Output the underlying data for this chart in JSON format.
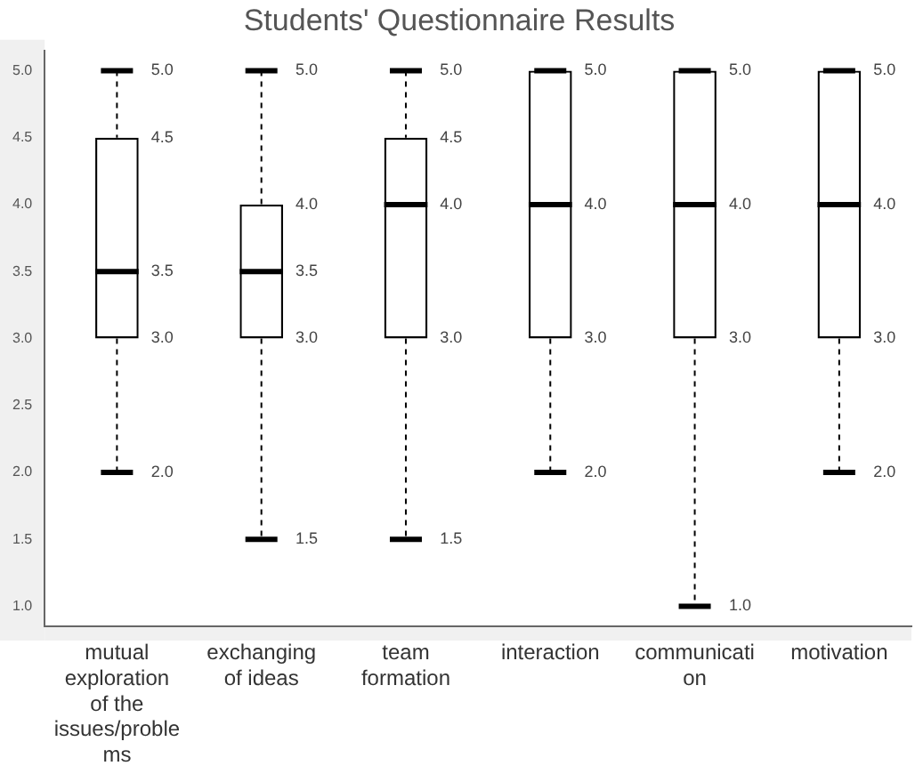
{
  "chart_data": {
    "type": "box",
    "title": "Students' Questionnaire Results",
    "categories": [
      "mutual exploration of the issues/problems",
      "exchanging of ideas",
      "team formation",
      "interaction",
      "communication",
      "motivation"
    ],
    "boxes": [
      {
        "low": 2,
        "q1": 3,
        "median": 3.5,
        "q3": 4.5,
        "high": 5
      },
      {
        "low": 1.5,
        "q1": 3,
        "median": 3.5,
        "q3": 4,
        "high": 5
      },
      {
        "low": 1.5,
        "q1": 3,
        "median": 4,
        "q3": 4.5,
        "high": 5
      },
      {
        "low": 2,
        "q1": 3,
        "median": 4,
        "q3": 5,
        "high": 5
      },
      {
        "low": 1,
        "q1": 3,
        "median": 4,
        "q3": 5,
        "high": 5
      },
      {
        "low": 2,
        "q1": 3,
        "median": 4,
        "q3": 5,
        "high": 5
      }
    ],
    "color": "#000000",
    "ylim": [
      0.85,
      5.15
    ],
    "yticks": [
      {
        "value": 1,
        "label": "1.0"
      },
      {
        "value": 1.5,
        "label": "1.5"
      },
      {
        "value": 2,
        "label": "2.0"
      },
      {
        "value": 2.5,
        "label": "2.5"
      },
      {
        "value": 3,
        "label": "3.0"
      },
      {
        "value": 3.5,
        "label": "3.5"
      },
      {
        "value": 4,
        "label": "4.0"
      },
      {
        "value": 4.5,
        "label": "4.5"
      },
      {
        "value": 5,
        "label": "5.0"
      }
    ],
    "annotations": [
      {
        "text": "5.0",
        "x": "mutual exploration of the issues/problems",
        "y": 5
      },
      {
        "text": "4.5",
        "x": "mutual exploration of the issues/problems",
        "y": 4.5
      },
      {
        "text": "3.5",
        "x": "mutual exploration of the issues/problems",
        "y": 3.5
      },
      {
        "text": "3.0",
        "x": "mutual exploration of the issues/problems",
        "y": 3
      },
      {
        "text": "2.0",
        "x": "mutual exploration of the issues/problems",
        "y": 2
      },
      {
        "text": "5.0",
        "x": "exchanging of ideas",
        "y": 5
      },
      {
        "text": "4.0",
        "x": "exchanging of ideas",
        "y": 4
      },
      {
        "text": "3.5",
        "x": "exchanging of ideas",
        "y": 3.5
      },
      {
        "text": "3.0",
        "x": "exchanging of ideas",
        "y": 3
      },
      {
        "text": "1.5",
        "x": "exchanging of ideas",
        "y": 1.5
      },
      {
        "text": "5.0",
        "x": "team formation",
        "y": 5
      },
      {
        "text": "4.5",
        "x": "team formation",
        "y": 4.5
      },
      {
        "text": "4.0",
        "x": "team formation",
        "y": 4
      },
      {
        "text": "3.0",
        "x": "team formation",
        "y": 3
      },
      {
        "text": "1.5",
        "x": "team formation",
        "y": 1.5
      },
      {
        "text": "5.0",
        "x": "interaction",
        "y": 5
      },
      {
        "text": "4.0",
        "x": "interaction",
        "y": 4
      },
      {
        "text": "3.0",
        "x": "interaction",
        "y": 3
      },
      {
        "text": "2.0",
        "x": "interaction",
        "y": 2
      },
      {
        "text": "5.0",
        "x": "communication",
        "y": 5
      },
      {
        "text": "4.0",
        "x": "communication",
        "y": 4
      },
      {
        "text": "3.0",
        "x": "communication",
        "y": 3
      },
      {
        "text": "1.0",
        "x": "communication",
        "y": 1
      },
      {
        "text": "5.0",
        "x": "motivation",
        "y": 5
      },
      {
        "text": "4.0",
        "x": "motivation",
        "y": 4
      },
      {
        "text": "3.0",
        "x": "motivation",
        "y": 3
      },
      {
        "text": "2.0",
        "x": "motivation",
        "y": 2
      }
    ]
  }
}
